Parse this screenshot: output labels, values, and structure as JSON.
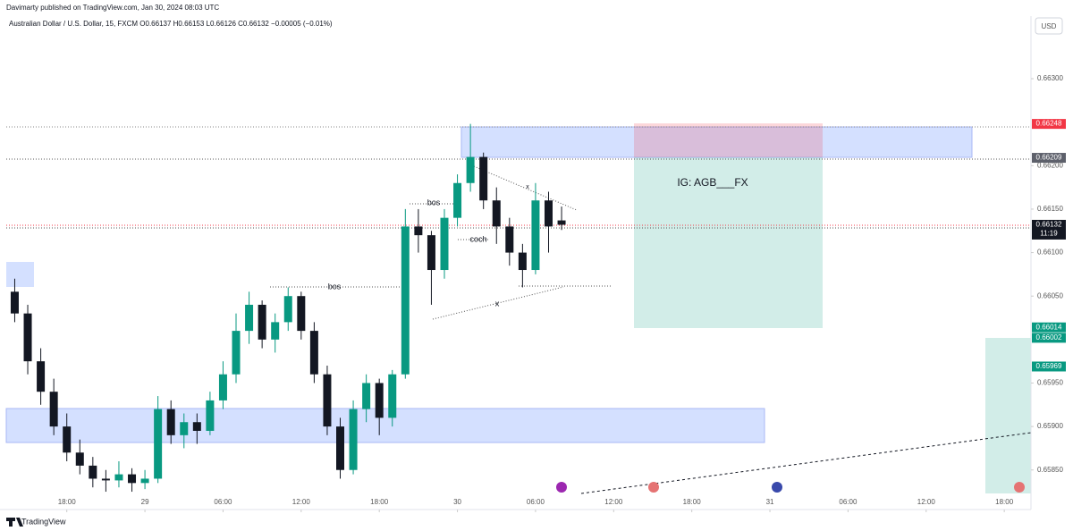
{
  "chart_data": {
    "type": "candlestick",
    "title": "Davimarty published on TradingView.com, Jan 30, 2024 08:03 UTC",
    "subtitle": "Australian Dollar / U.S. Dollar, 15, FXCM  O0.66137  H0.66153  L0.66126  C0.66132  −0.00005 (−0.01%)",
    "currency": "USD",
    "brand": "TradingView",
    "up_color": "#089981",
    "down_color": "#131722",
    "x": [
      -10,
      -9,
      -8,
      -7,
      -6,
      -5,
      -4,
      -3,
      -2,
      -1,
      0,
      1,
      2,
      3,
      4,
      5,
      6,
      7,
      8,
      9,
      10,
      11,
      12,
      13,
      14,
      15,
      16,
      17,
      18,
      19,
      20,
      21,
      22,
      23,
      24,
      25,
      26,
      27,
      28,
      29,
      30,
      31,
      32
    ],
    "open": [
      0.66055,
      0.6603,
      0.65975,
      0.6594,
      0.659,
      0.6587,
      0.65855,
      0.6584,
      0.65838,
      0.65845,
      0.65835,
      0.6584,
      0.6592,
      0.6589,
      0.65905,
      0.65895,
      0.6593,
      0.6596,
      0.6601,
      0.6604,
      0.66,
      0.6602,
      0.6605,
      0.6601,
      0.6596,
      0.659,
      0.6585,
      0.6592,
      0.6595,
      0.6591,
      0.6596,
      0.6613,
      0.6612,
      0.6608,
      0.6614,
      0.6618,
      0.6621,
      0.6616,
      0.6613,
      0.661,
      0.6608,
      0.6616,
      0.66137
    ],
    "high": [
      0.6607,
      0.6604,
      0.6599,
      0.65955,
      0.65915,
      0.65885,
      0.65865,
      0.6585,
      0.6586,
      0.65852,
      0.6585,
      0.65935,
      0.6593,
      0.65915,
      0.65915,
      0.6594,
      0.65975,
      0.6603,
      0.66055,
      0.66045,
      0.6603,
      0.6606,
      0.66055,
      0.6602,
      0.6597,
      0.6591,
      0.6593,
      0.6596,
      0.65955,
      0.65965,
      0.6615,
      0.6615,
      0.66125,
      0.6615,
      0.6619,
      0.66248,
      0.66215,
      0.66175,
      0.6614,
      0.6611,
      0.6618,
      0.6617,
      0.66153
    ],
    "low": [
      0.6602,
      0.6596,
      0.65925,
      0.6589,
      0.6586,
      0.65845,
      0.6583,
      0.65825,
      0.6583,
      0.65825,
      0.65828,
      0.65835,
      0.6588,
      0.65875,
      0.6588,
      0.6589,
      0.6592,
      0.6595,
      0.65995,
      0.6599,
      0.65985,
      0.6601,
      0.66,
      0.6595,
      0.6589,
      0.6584,
      0.65845,
      0.65905,
      0.6589,
      0.659,
      0.65955,
      0.661,
      0.6604,
      0.6607,
      0.6613,
      0.6617,
      0.6615,
      0.6611,
      0.66085,
      0.6606,
      0.66075,
      0.661,
      0.66126
    ],
    "close": [
      0.6603,
      0.65975,
      0.6594,
      0.659,
      0.6587,
      0.65855,
      0.6584,
      0.65838,
      0.65845,
      0.65835,
      0.6584,
      0.6592,
      0.6589,
      0.65905,
      0.65895,
      0.6593,
      0.6596,
      0.6601,
      0.6604,
      0.66,
      0.6602,
      0.6605,
      0.6601,
      0.6596,
      0.659,
      0.6585,
      0.6592,
      0.6595,
      0.6591,
      0.6596,
      0.6613,
      0.6612,
      0.6608,
      0.6614,
      0.6618,
      0.6621,
      0.6616,
      0.6613,
      0.661,
      0.6608,
      0.6616,
      0.6613,
      0.66132
    ],
    "xlim": [
      -10.65,
      68.05
    ],
    "ylim": [
      0.65823,
      0.66372
    ],
    "xticks": [
      {
        "value": -6,
        "label": "18:00"
      },
      {
        "value": 0,
        "label": "29"
      },
      {
        "value": 6,
        "label": "06:00"
      },
      {
        "value": 12,
        "label": "12:00"
      },
      {
        "value": 18,
        "label": "18:00"
      },
      {
        "value": 24,
        "label": "30"
      },
      {
        "value": 30,
        "label": "06:00"
      },
      {
        "value": 36,
        "label": "12:00"
      },
      {
        "value": 42,
        "label": "18:00"
      },
      {
        "value": 48,
        "label": "31"
      },
      {
        "value": 54,
        "label": "06:00"
      },
      {
        "value": 60,
        "label": "12:00"
      },
      {
        "value": 66,
        "label": "18:00"
      }
    ],
    "yticks": [
      {
        "value": 0.663,
        "label": "0.66300"
      },
      {
        "value": 0.662,
        "label": "0.66200"
      },
      {
        "value": 0.6615,
        "label": "0.66150"
      },
      {
        "value": 0.661,
        "label": "0.66100"
      },
      {
        "value": 0.6605,
        "label": "0.66050"
      },
      {
        "value": 0.6595,
        "label": "0.65950"
      },
      {
        "value": 0.659,
        "label": "0.65900"
      },
      {
        "value": 0.6585,
        "label": "0.65850"
      }
    ],
    "price_labels": [
      {
        "value": 0.66248,
        "label": "0.66248",
        "color": "#f23645"
      },
      {
        "value": 0.66209,
        "label": "0.66209",
        "color": "#5d606b"
      },
      {
        "value": 0.66132,
        "label": "0.66132",
        "color": "#131722",
        "countdown": "11:19"
      },
      {
        "value": 0.66014,
        "label": "0.66014",
        "color": "#089981"
      },
      {
        "value": 0.66002,
        "label": "0.66002",
        "color": "#089981"
      },
      {
        "value": 0.65969,
        "label": "0.65969",
        "color": "#089981"
      }
    ],
    "annotations": [
      "bos",
      "bos",
      "coch",
      "x",
      "x",
      "IG: AGB___FX"
    ]
  }
}
